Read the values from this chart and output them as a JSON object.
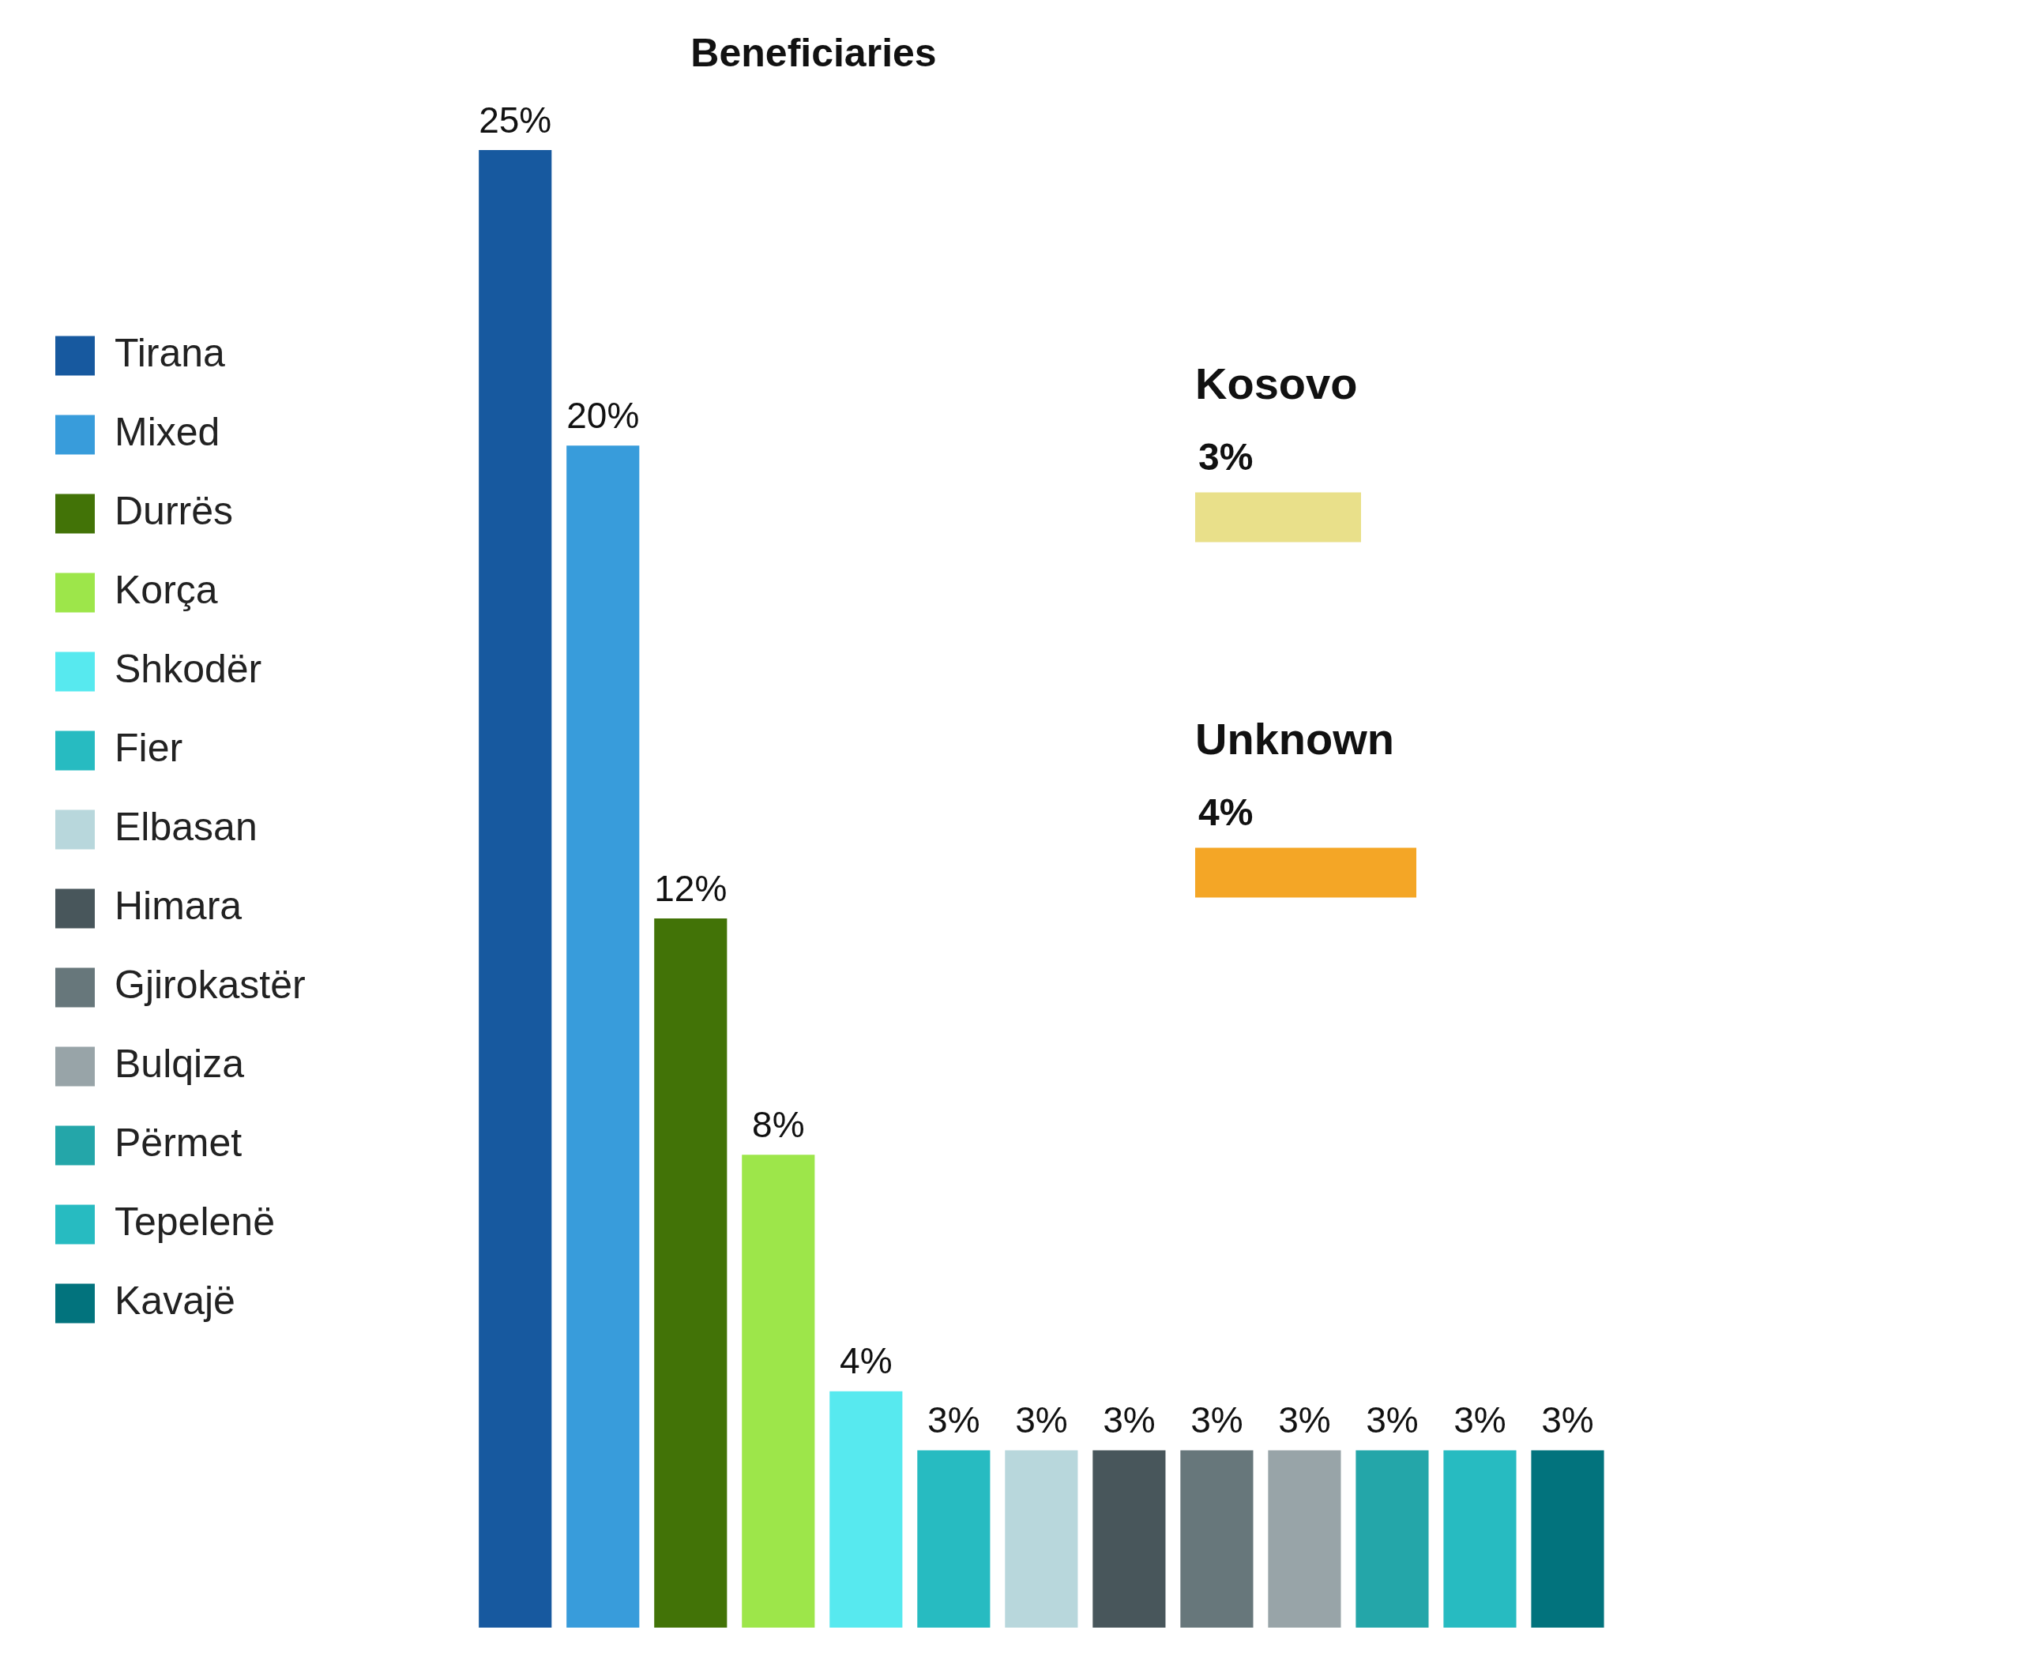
{
  "chart_data": [
    {
      "type": "bar",
      "title": "Beneficiaries",
      "categories": [
        null,
        null,
        null,
        null,
        null,
        null,
        null,
        null,
        null,
        null,
        null,
        null,
        null
      ],
      "series": [
        {
          "name": "Tirana",
          "color": "#17599f",
          "values": [
            25,
            null,
            null,
            null,
            null,
            null,
            null,
            null,
            null,
            null,
            null,
            null,
            null
          ],
          "value_labels": [
            "25%",
            null,
            null,
            null,
            null,
            null,
            null,
            null,
            null,
            null,
            null,
            null,
            null
          ]
        },
        {
          "name": "Mixed",
          "color": "#389cdb",
          "values": [
            null,
            20,
            null,
            null,
            null,
            null,
            null,
            null,
            null,
            null,
            null,
            null,
            null
          ],
          "value_labels": [
            null,
            "20%",
            null,
            null,
            null,
            null,
            null,
            null,
            null,
            null,
            null,
            null,
            null
          ]
        },
        {
          "name": "Durrës",
          "color": "#427307",
          "values": [
            null,
            null,
            12,
            null,
            null,
            null,
            null,
            null,
            null,
            null,
            null,
            null,
            null
          ],
          "value_labels": [
            null,
            null,
            "12%",
            null,
            null,
            null,
            null,
            null,
            null,
            null,
            null,
            null,
            null
          ]
        },
        {
          "name": "Korça",
          "color": "#9de64a",
          "values": [
            null,
            null,
            null,
            8,
            null,
            null,
            null,
            null,
            null,
            null,
            null,
            null,
            null
          ],
          "value_labels": [
            null,
            null,
            null,
            "8%",
            null,
            null,
            null,
            null,
            null,
            null,
            null,
            null,
            null
          ]
        },
        {
          "name": "Shkodër",
          "color": "#57e9ef",
          "values": [
            null,
            null,
            null,
            null,
            4,
            null,
            null,
            null,
            null,
            null,
            null,
            null,
            null
          ],
          "value_labels": [
            null,
            null,
            null,
            null,
            "4%",
            null,
            null,
            null,
            null,
            null,
            null,
            null,
            null
          ]
        },
        {
          "name": "Fier",
          "color": "#27bbc1",
          "values": [
            null,
            null,
            null,
            null,
            null,
            3,
            null,
            null,
            null,
            null,
            null,
            null,
            null
          ],
          "value_labels": [
            null,
            null,
            null,
            null,
            null,
            "3%",
            null,
            null,
            null,
            null,
            null,
            null,
            null
          ]
        },
        {
          "name": "Elbasan",
          "color": "#b8d7dc",
          "values": [
            null,
            null,
            null,
            null,
            null,
            null,
            3,
            null,
            null,
            null,
            null,
            null,
            null
          ],
          "value_labels": [
            null,
            null,
            null,
            null,
            null,
            null,
            "3%",
            null,
            null,
            null,
            null,
            null,
            null
          ]
        },
        {
          "name": "Himara",
          "color": "#48565b",
          "values": [
            null,
            null,
            null,
            null,
            null,
            null,
            null,
            3,
            null,
            null,
            null,
            null,
            null
          ],
          "value_labels": [
            null,
            null,
            null,
            null,
            null,
            null,
            null,
            "3%",
            null,
            null,
            null,
            null,
            null
          ]
        },
        {
          "name": "Gjirokastër",
          "color": "#67777b",
          "values": [
            null,
            null,
            null,
            null,
            null,
            null,
            null,
            null,
            3,
            null,
            null,
            null,
            null
          ],
          "value_labels": [
            null,
            null,
            null,
            null,
            null,
            null,
            null,
            null,
            "3%",
            null,
            null,
            null,
            null
          ]
        },
        {
          "name": "Bulqiza",
          "color": "#98a4a8",
          "values": [
            null,
            null,
            null,
            null,
            null,
            null,
            null,
            null,
            null,
            3,
            null,
            null,
            null
          ],
          "value_labels": [
            null,
            null,
            null,
            null,
            null,
            null,
            null,
            null,
            null,
            "3%",
            null,
            null,
            null
          ]
        },
        {
          "name": "Përmet",
          "color": "#24a6a9",
          "values": [
            null,
            null,
            null,
            null,
            null,
            null,
            null,
            null,
            null,
            null,
            3,
            null,
            null
          ],
          "value_labels": [
            null,
            null,
            null,
            null,
            null,
            null,
            null,
            null,
            null,
            null,
            "3%",
            null,
            null
          ]
        },
        {
          "name": "Tepelenë",
          "color": "#27bbc1",
          "values": [
            null,
            null,
            null,
            null,
            null,
            null,
            null,
            null,
            null,
            null,
            null,
            3,
            null
          ],
          "value_labels": [
            null,
            null,
            null,
            null,
            null,
            null,
            null,
            null,
            null,
            null,
            null,
            "3%",
            null
          ]
        },
        {
          "name": "Kavajë",
          "color": "#02737d",
          "values": [
            null,
            null,
            null,
            null,
            null,
            null,
            null,
            null,
            null,
            null,
            null,
            null,
            3
          ],
          "value_labels": [
            null,
            null,
            null,
            null,
            null,
            null,
            null,
            null,
            null,
            null,
            null,
            null,
            "3%"
          ]
        }
      ],
      "stacked": true,
      "legend": "left",
      "tick_labels": false,
      "grid": false
    },
    {
      "type": "bar",
      "orientation": "horizontal",
      "categories": [
        "Kosovo",
        "Unknown"
      ],
      "values": [
        3,
        4
      ],
      "value_labels": [
        "3%",
        "4%"
      ],
      "colors": [
        "#e9e08a",
        "#f4a626"
      ],
      "legend": false,
      "tick_labels": false,
      "grid": false
    }
  ]
}
